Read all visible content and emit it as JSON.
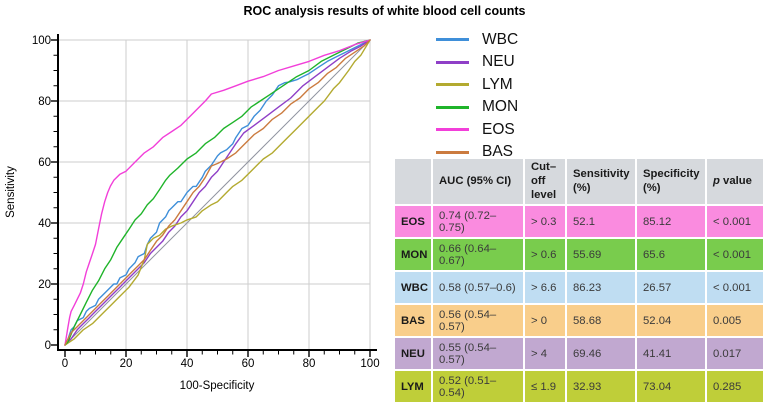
{
  "chart_data": {
    "type": "line",
    "title": "ROC analysis results of white blood cell counts",
    "xlabel": "100-Specificity",
    "ylabel": "Sensitivity",
    "xlim": [
      0,
      100
    ],
    "ylim": [
      0,
      100
    ],
    "x_ticks": [
      0,
      20,
      40,
      60,
      80,
      100
    ],
    "y_ticks": [
      0,
      20,
      40,
      60,
      80,
      100
    ],
    "minor_tick_step": 5,
    "grid": true,
    "legend_position": "right-top",
    "reference_line": {
      "color": "#9094A0",
      "points": [
        [
          0,
          0
        ],
        [
          100,
          100
        ]
      ]
    },
    "series": [
      {
        "name": "WBC",
        "color": "#3F8FD9",
        "points": [
          [
            0,
            0
          ],
          [
            1,
            2
          ],
          [
            2,
            5
          ],
          [
            3,
            6
          ],
          [
            4,
            8
          ],
          [
            6,
            9
          ],
          [
            7,
            11
          ],
          [
            8,
            12
          ],
          [
            10,
            13
          ],
          [
            11,
            15
          ],
          [
            13,
            17
          ],
          [
            14,
            18
          ],
          [
            16,
            20
          ],
          [
            17,
            20
          ],
          [
            18,
            22
          ],
          [
            20,
            23
          ],
          [
            21,
            25
          ],
          [
            23,
            27
          ],
          [
            24,
            29
          ],
          [
            26,
            30
          ],
          [
            27,
            33
          ],
          [
            28,
            35
          ],
          [
            30,
            37
          ],
          [
            31,
            40
          ],
          [
            33,
            42
          ],
          [
            34,
            44
          ],
          [
            35,
            45
          ],
          [
            37,
            47
          ],
          [
            38,
            47
          ],
          [
            40,
            50
          ],
          [
            42,
            52
          ],
          [
            43,
            52
          ],
          [
            45,
            55
          ],
          [
            46,
            57
          ],
          [
            48,
            59
          ],
          [
            50,
            62
          ],
          [
            51,
            63
          ],
          [
            53,
            64
          ],
          [
            55,
            66
          ],
          [
            56,
            68
          ],
          [
            58,
            71
          ],
          [
            60,
            72
          ],
          [
            62,
            75
          ],
          [
            64,
            77
          ],
          [
            66,
            80
          ],
          [
            68,
            82
          ],
          [
            70,
            85
          ],
          [
            72,
            86
          ],
          [
            73.4,
            86.2
          ],
          [
            76,
            87
          ],
          [
            78,
            88
          ],
          [
            80,
            89
          ],
          [
            83,
            91
          ],
          [
            86,
            93
          ],
          [
            89,
            94.5
          ],
          [
            92,
            96
          ],
          [
            95,
            97.5
          ],
          [
            98,
            99
          ],
          [
            100,
            100
          ]
        ]
      },
      {
        "name": "NEU",
        "color": "#8F3FC7",
        "points": [
          [
            0,
            0
          ],
          [
            2,
            2
          ],
          [
            4,
            5
          ],
          [
            6,
            7
          ],
          [
            8,
            9
          ],
          [
            10,
            11
          ],
          [
            12,
            13
          ],
          [
            14,
            15
          ],
          [
            16,
            17
          ],
          [
            18,
            19
          ],
          [
            20,
            21
          ],
          [
            22,
            23
          ],
          [
            24,
            25
          ],
          [
            26,
            27
          ],
          [
            28,
            30
          ],
          [
            30,
            32
          ],
          [
            32,
            34
          ],
          [
            34,
            37
          ],
          [
            36,
            39
          ],
          [
            38,
            42
          ],
          [
            40,
            44
          ],
          [
            42,
            47
          ],
          [
            44,
            50
          ],
          [
            46,
            52
          ],
          [
            48,
            55
          ],
          [
            50,
            57
          ],
          [
            52,
            60
          ],
          [
            54,
            63
          ],
          [
            56,
            66
          ],
          [
            58.6,
            69.5
          ],
          [
            62,
            72
          ],
          [
            66,
            75
          ],
          [
            70,
            78
          ],
          [
            74,
            81
          ],
          [
            78,
            85
          ],
          [
            82,
            88
          ],
          [
            86,
            91
          ],
          [
            90,
            94
          ],
          [
            94,
            96.5
          ],
          [
            97,
            98
          ],
          [
            100,
            100
          ]
        ]
      },
      {
        "name": "LYM",
        "color": "#B3AA30",
        "points": [
          [
            0,
            0
          ],
          [
            3,
            2
          ],
          [
            6,
            5
          ],
          [
            9,
            7
          ],
          [
            12,
            10
          ],
          [
            15,
            13
          ],
          [
            18,
            16
          ],
          [
            21,
            19
          ],
          [
            24,
            23
          ],
          [
            26,
            28
          ],
          [
            27,
            33
          ],
          [
            29,
            35
          ],
          [
            31,
            36
          ],
          [
            33,
            38
          ],
          [
            35,
            39
          ],
          [
            38,
            40
          ],
          [
            40,
            41
          ],
          [
            43,
            42
          ],
          [
            45,
            44
          ],
          [
            48,
            46
          ],
          [
            50,
            47
          ],
          [
            53,
            50
          ],
          [
            55,
            52
          ],
          [
            58,
            54
          ],
          [
            60,
            56
          ],
          [
            63,
            59
          ],
          [
            65,
            61
          ],
          [
            68,
            63
          ],
          [
            70,
            65
          ],
          [
            73,
            68
          ],
          [
            75,
            70
          ],
          [
            78,
            73
          ],
          [
            80,
            75
          ],
          [
            83,
            78
          ],
          [
            85,
            80
          ],
          [
            88,
            84
          ],
          [
            90,
            86
          ],
          [
            93,
            90
          ],
          [
            95,
            93
          ],
          [
            97,
            95
          ],
          [
            100,
            100
          ]
        ]
      },
      {
        "name": "MON",
        "color": "#1FB42A",
        "points": [
          [
            0,
            0
          ],
          [
            1,
            1
          ],
          [
            3,
            6
          ],
          [
            5,
            10
          ],
          [
            7,
            14
          ],
          [
            9,
            18
          ],
          [
            11,
            21
          ],
          [
            13,
            25
          ],
          [
            15,
            28
          ],
          [
            17,
            32
          ],
          [
            19,
            35
          ],
          [
            21,
            38
          ],
          [
            23,
            41
          ],
          [
            25,
            43
          ],
          [
            27,
            46
          ],
          [
            29,
            48
          ],
          [
            31,
            51
          ],
          [
            33,
            54
          ],
          [
            34.4,
            55.7
          ],
          [
            37,
            58
          ],
          [
            40,
            61
          ],
          [
            43,
            63
          ],
          [
            46,
            66
          ],
          [
            49,
            68
          ],
          [
            52,
            71
          ],
          [
            55,
            73
          ],
          [
            58,
            75
          ],
          [
            61,
            78
          ],
          [
            64,
            80
          ],
          [
            67,
            82
          ],
          [
            70,
            84
          ],
          [
            73,
            86
          ],
          [
            76,
            88
          ],
          [
            80,
            90
          ],
          [
            84,
            93
          ],
          [
            88,
            95
          ],
          [
            92,
            97
          ],
          [
            96,
            99
          ],
          [
            100,
            100
          ]
        ]
      },
      {
        "name": "EOS",
        "color": "#F23FD9",
        "points": [
          [
            0,
            0
          ],
          [
            0.5,
            3
          ],
          [
            1,
            6
          ],
          [
            1.5,
            9
          ],
          [
            2,
            11
          ],
          [
            3,
            13
          ],
          [
            4,
            15
          ],
          [
            5,
            17
          ],
          [
            6,
            20
          ],
          [
            7,
            24
          ],
          [
            8,
            27
          ],
          [
            9,
            30
          ],
          [
            10,
            33
          ],
          [
            11,
            38
          ],
          [
            12,
            43
          ],
          [
            13,
            47
          ],
          [
            14,
            50
          ],
          [
            14.9,
            52.1
          ],
          [
            16,
            54
          ],
          [
            18,
            56
          ],
          [
            20,
            57
          ],
          [
            23,
            60
          ],
          [
            26,
            63
          ],
          [
            29,
            65
          ],
          [
            32,
            68
          ],
          [
            35,
            70
          ],
          [
            38,
            72
          ],
          [
            41,
            75
          ],
          [
            44,
            78
          ],
          [
            46,
            80
          ],
          [
            48,
            82.3
          ],
          [
            52,
            83.5
          ],
          [
            56,
            85
          ],
          [
            60,
            86.5
          ],
          [
            65,
            88
          ],
          [
            70,
            90
          ],
          [
            75,
            91.5
          ],
          [
            80,
            93
          ],
          [
            85,
            95
          ],
          [
            90,
            96.5
          ],
          [
            95,
            98.5
          ],
          [
            100,
            100
          ]
        ]
      },
      {
        "name": "BAS",
        "color": "#CB7B3F",
        "points": [
          [
            0,
            0
          ],
          [
            2,
            4
          ],
          [
            4,
            6
          ],
          [
            6,
            8
          ],
          [
            8,
            10
          ],
          [
            10,
            12
          ],
          [
            12,
            14
          ],
          [
            14,
            16
          ],
          [
            16,
            18
          ],
          [
            18,
            20
          ],
          [
            20,
            22
          ],
          [
            22,
            24
          ],
          [
            24,
            26
          ],
          [
            26,
            28
          ],
          [
            28,
            31
          ],
          [
            30,
            34
          ],
          [
            32,
            36
          ],
          [
            34,
            39
          ],
          [
            36,
            41
          ],
          [
            38,
            44
          ],
          [
            40,
            47
          ],
          [
            42,
            50
          ],
          [
            44,
            52
          ],
          [
            46,
            55
          ],
          [
            48,
            58.7
          ],
          [
            50,
            59.5
          ],
          [
            53,
            61
          ],
          [
            56,
            63
          ],
          [
            59,
            66
          ],
          [
            62,
            69
          ],
          [
            65,
            71
          ],
          [
            68,
            74
          ],
          [
            71,
            76
          ],
          [
            74,
            79
          ],
          [
            77,
            81
          ],
          [
            80,
            84
          ],
          [
            83,
            86
          ],
          [
            86,
            89
          ],
          [
            89,
            91
          ],
          [
            92,
            94
          ],
          [
            95,
            96
          ],
          [
            98,
            98
          ],
          [
            100,
            100
          ]
        ]
      }
    ]
  },
  "table": {
    "headers": [
      {
        "text": ""
      },
      {
        "text": "AUC (95% CI)"
      },
      {
        "text": "Cut–off level"
      },
      {
        "text": "Sensitivity (%)"
      },
      {
        "text": "Specificity (%)"
      },
      {
        "text": "p value",
        "italic_first": true
      }
    ],
    "rows": [
      {
        "label": "EOS",
        "bg": "#FA8BDF",
        "values": [
          "0.74 (0.72–0.75)",
          "> 0.3",
          "52.1",
          "85.12",
          "< 0.001"
        ]
      },
      {
        "label": "MON",
        "bg": "#79CC4D",
        "values": [
          "0.66 (0.64–0.67)",
          "> 0.6",
          "55.69",
          "65.6",
          "< 0.001"
        ]
      },
      {
        "label": "WBC",
        "bg": "#BFDDF2",
        "values": [
          "0.58 (0.57–0.6)",
          "> 6.6",
          "86.23",
          "26.57",
          "< 0.001"
        ]
      },
      {
        "label": "BAS",
        "bg": "#F9CE8B",
        "values": [
          "0.56 (0.54–0.57)",
          "> 0",
          "58.68",
          "52.04",
          "0.005"
        ]
      },
      {
        "label": "NEU",
        "bg": "#C1A8D0",
        "values": [
          "0.55 (0.54–0.57)",
          "> 4",
          "69.46",
          "41.41",
          "0.017"
        ]
      },
      {
        "label": "LYM",
        "bg": "#BFCE39",
        "values": [
          "0.52 (0.51–0.54)",
          "≤ 1.9",
          "32.93",
          "73.04",
          "0.285"
        ]
      }
    ]
  }
}
